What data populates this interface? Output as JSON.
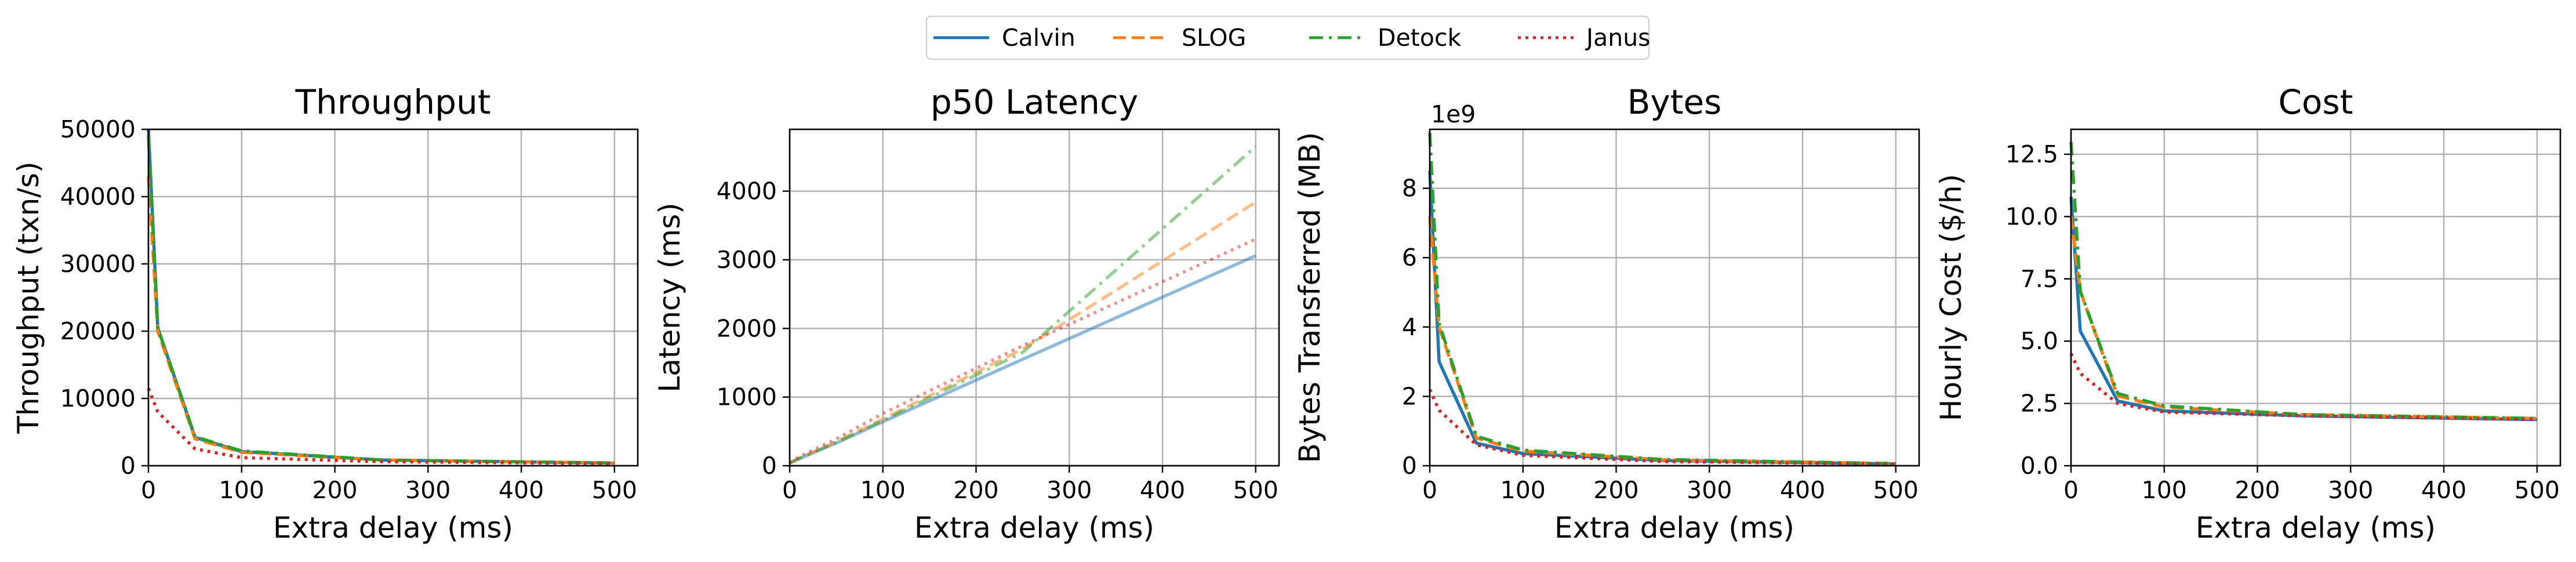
{
  "legend": {
    "entries": [
      {
        "label": "Calvin",
        "color": "#1f77b4",
        "style": "solid"
      },
      {
        "label": "SLOG",
        "color": "#ff7f0e",
        "style": "dashed"
      },
      {
        "label": "Detock",
        "color": "#2ca02c",
        "style": "dashdot"
      },
      {
        "label": "Janus",
        "color": "#d62728",
        "style": "dotted"
      }
    ]
  },
  "chart_data": [
    {
      "type": "line",
      "title": "Throughput",
      "xlabel": "Extra delay (ms)",
      "ylabel": "Throughput (txn/s)",
      "xlim": [
        0,
        525
      ],
      "ylim": [
        0,
        50000
      ],
      "xticks": [
        0,
        100,
        200,
        300,
        400,
        500
      ],
      "yticks": [
        0,
        10000,
        20000,
        30000,
        40000,
        50000
      ],
      "ytick_labels": [
        "0",
        "10000",
        "20000",
        "30000",
        "40000",
        "50000"
      ],
      "y_offset_label": "",
      "grid": true,
      "alpha": 1,
      "x": [
        0,
        10,
        50,
        100,
        250,
        500
      ],
      "series": [
        {
          "name": "Calvin",
          "values": [
            50000,
            20500,
            4200,
            2100,
            850,
            400
          ]
        },
        {
          "name": "SLOG",
          "values": [
            43000,
            20000,
            4000,
            2000,
            850,
            400
          ]
        },
        {
          "name": "Detock",
          "values": [
            49000,
            20500,
            4300,
            2200,
            850,
            400
          ]
        },
        {
          "name": "Janus",
          "values": [
            11500,
            8000,
            2500,
            1200,
            600,
            300
          ]
        }
      ]
    },
    {
      "type": "line",
      "title": "p50 Latency",
      "xlabel": "Extra delay (ms)",
      "ylabel": "Latency (ms)",
      "xlim": [
        0,
        525
      ],
      "ylim": [
        0,
        4900
      ],
      "xticks": [
        0,
        100,
        200,
        300,
        400,
        500
      ],
      "yticks": [
        0,
        1000,
        2000,
        3000,
        4000
      ],
      "ytick_labels": [
        "0",
        "1000",
        "2000",
        "3000",
        "4000"
      ],
      "y_offset_label": "",
      "grid": true,
      "alpha": 0.5,
      "x": [
        0,
        10,
        50,
        100,
        250,
        500
      ],
      "series": [
        {
          "name": "Calvin",
          "values": [
            40,
            100,
            330,
            640,
            1550,
            3060
          ]
        },
        {
          "name": "SLOG",
          "values": [
            40,
            110,
            350,
            680,
            1700,
            3840
          ]
        },
        {
          "name": "Detock",
          "values": [
            40,
            105,
            340,
            660,
            1650,
            4650
          ]
        },
        {
          "name": "Janus",
          "values": [
            40,
            130,
            390,
            760,
            1750,
            3300
          ]
        }
      ]
    },
    {
      "type": "line",
      "title": "Bytes",
      "xlabel": "Extra delay (ms)",
      "ylabel": "Bytes Transferred (MB)",
      "xlim": [
        0,
        525
      ],
      "ylim": [
        0,
        9.7
      ],
      "xticks": [
        0,
        100,
        200,
        300,
        400,
        500
      ],
      "yticks": [
        0,
        2,
        4,
        6,
        8
      ],
      "ytick_labels": [
        "0",
        "2",
        "4",
        "6",
        "8"
      ],
      "y_offset_label": "1e9",
      "grid": true,
      "alpha": 1,
      "x": [
        0,
        10,
        50,
        100,
        250,
        500
      ],
      "series": [
        {
          "name": "Calvin",
          "values": [
            8.5,
            3.0,
            0.65,
            0.35,
            0.15,
            0.05
          ]
        },
        {
          "name": "SLOG",
          "values": [
            7.2,
            4.0,
            0.8,
            0.42,
            0.17,
            0.06
          ]
        },
        {
          "name": "Detock",
          "values": [
            9.6,
            4.1,
            0.85,
            0.45,
            0.18,
            0.06
          ]
        },
        {
          "name": "Janus",
          "values": [
            2.2,
            1.6,
            0.6,
            0.3,
            0.12,
            0.05
          ]
        }
      ]
    },
    {
      "type": "line",
      "title": "Cost",
      "xlabel": "Extra delay (ms)",
      "ylabel": "Hourly Cost ($/h)",
      "xlim": [
        0,
        525
      ],
      "ylim": [
        0,
        13.5
      ],
      "xticks": [
        0,
        100,
        200,
        300,
        400,
        500
      ],
      "yticks": [
        0,
        2.5,
        5,
        7.5,
        10,
        12.5
      ],
      "ytick_labels": [
        "0.0",
        "2.5",
        "5.0",
        "7.5",
        "10.0",
        "12.5"
      ],
      "y_offset_label": "",
      "grid": true,
      "alpha": 1,
      "x": [
        0,
        10,
        50,
        100,
        250,
        500
      ],
      "series": [
        {
          "name": "Calvin",
          "values": [
            10.8,
            5.4,
            2.6,
            2.2,
            2.0,
            1.85
          ]
        },
        {
          "name": "SLOG",
          "values": [
            10.0,
            7.0,
            2.8,
            2.35,
            2.05,
            1.9
          ]
        },
        {
          "name": "Detock",
          "values": [
            13.0,
            7.0,
            2.9,
            2.4,
            2.05,
            1.9
          ]
        },
        {
          "name": "Janus",
          "values": [
            4.5,
            3.7,
            2.5,
            2.15,
            2.0,
            1.85
          ]
        }
      ]
    }
  ]
}
